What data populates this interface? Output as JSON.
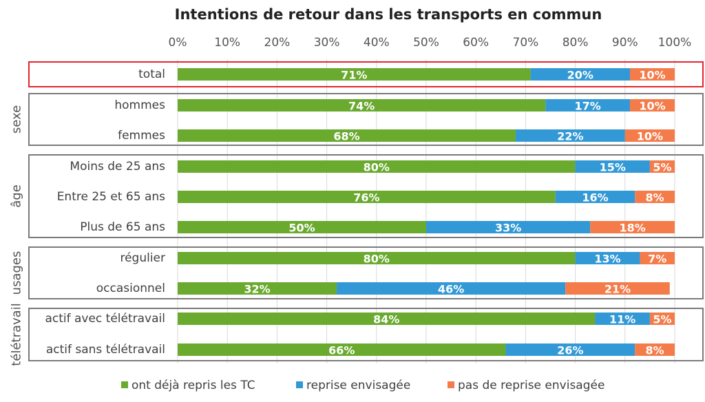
{
  "chart_data": {
    "type": "bar",
    "orientation": "horizontal",
    "stacked": true,
    "title": "Intentions de retour dans les transports en commun",
    "xlim": [
      0,
      100
    ],
    "x_ticks": [
      "0%",
      "10%",
      "20%",
      "30%",
      "40%",
      "50%",
      "60%",
      "70%",
      "80%",
      "90%",
      "100%"
    ],
    "grid": true,
    "legend_position": "bottom",
    "categories": [
      "total",
      "hommes",
      "femmes",
      "Moins de 25 ans",
      "Entre 25 et 65 ans",
      "Plus de 65 ans",
      "régulier",
      "occasionnel",
      "actif avec télétravail",
      "actif sans télétravail"
    ],
    "groups": [
      {
        "label": "",
        "rows": [
          0
        ],
        "highlight": true
      },
      {
        "label": "sexe",
        "rows": [
          1,
          2
        ]
      },
      {
        "label": "âge",
        "rows": [
          3,
          4,
          5
        ]
      },
      {
        "label": "usages",
        "rows": [
          6,
          7
        ]
      },
      {
        "label": "télétravail",
        "rows": [
          8,
          9
        ]
      }
    ],
    "series": [
      {
        "name": "ont déjà repris les TC",
        "color": "#6aaa2f",
        "values": [
          71,
          74,
          68,
          80,
          76,
          50,
          80,
          32,
          84,
          66
        ]
      },
      {
        "name": "reprise envisagée",
        "color": "#3399d6",
        "values": [
          20,
          17,
          22,
          15,
          16,
          33,
          13,
          46,
          11,
          26
        ]
      },
      {
        "name": "pas de reprise envisagée",
        "color": "#f47c4a",
        "values": [
          10,
          10,
          10,
          5,
          8,
          18,
          7,
          21,
          5,
          8
        ]
      }
    ],
    "data_labels": [
      [
        "71%",
        "20%",
        "10%"
      ],
      [
        "74%",
        "17%",
        "10%"
      ],
      [
        "68%",
        "22%",
        "10%"
      ],
      [
        "80%",
        "15%",
        "5%"
      ],
      [
        "76%",
        "16%",
        "8%"
      ],
      [
        "50%",
        "33%",
        "18%"
      ],
      [
        "80%",
        "13%",
        "7%"
      ],
      [
        "32%",
        "46%",
        "21%"
      ],
      [
        "84%",
        "11%",
        "5%"
      ],
      [
        "66%",
        "26%",
        "8%"
      ]
    ]
  }
}
